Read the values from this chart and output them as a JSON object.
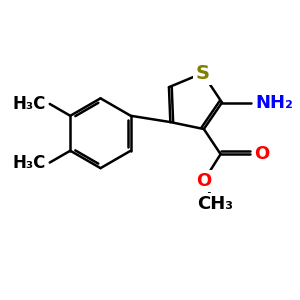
{
  "background_color": "#ffffff",
  "atom_colors": {
    "S": "#808000",
    "N": "#0000ff",
    "O": "#ff0000",
    "C": "#000000",
    "H": "#000000"
  },
  "bond_color": "#000000",
  "bond_width": 1.8,
  "figsize": [
    3.0,
    3.0
  ],
  "dpi": 100,
  "xlim": [
    0,
    10
  ],
  "ylim": [
    0,
    10
  ]
}
